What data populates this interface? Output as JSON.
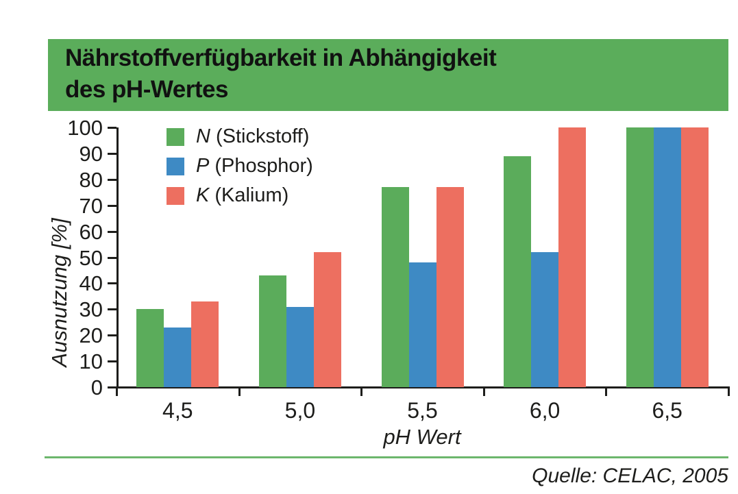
{
  "header": {
    "title_line1": "Nährstoffverfügbarkeit in Abhängigkeit",
    "title_line2": "des pH-Wertes"
  },
  "chart_data": {
    "type": "bar",
    "title": "Nährstoffverfügbarkeit in Abhängigkeit des pH-Wertes",
    "categories": [
      "4,5",
      "5,0",
      "5,5",
      "6,0",
      "6,5"
    ],
    "series": [
      {
        "name": "N (Stickstoff)",
        "color": "#5bac5b",
        "values": [
          30,
          43,
          77,
          89,
          100
        ]
      },
      {
        "name": "P (Phosphor)",
        "color": "#3e8ac4",
        "values": [
          23,
          31,
          48,
          52,
          100
        ]
      },
      {
        "name": "K (Kalium)",
        "color": "#ed6f60",
        "values": [
          33,
          52,
          77,
          100,
          100
        ]
      }
    ],
    "xlabel": "pH Wert",
    "ylabel": "Ausnutzung [%]",
    "ylim": [
      0,
      100
    ],
    "yticks": [
      0,
      10,
      20,
      30,
      40,
      50,
      60,
      70,
      80,
      90,
      100
    ],
    "grid": false,
    "legend_position": "top-left-inside"
  },
  "legend": {
    "items": [
      {
        "symbol": "N",
        "name": "(Stickstoff)",
        "color": "#5bac5b"
      },
      {
        "symbol": "P",
        "name": "(Phosphor)",
        "color": "#3e8ac4"
      },
      {
        "symbol": "K",
        "name": "(Kalium)",
        "color": "#ed6f60"
      }
    ]
  },
  "footer": {
    "source": "Quelle: CELAC, 2005"
  },
  "colors": {
    "banner_green": "#5bad5b",
    "rule_green": "#6cb66c",
    "axis_black": "#1d1d1b"
  }
}
